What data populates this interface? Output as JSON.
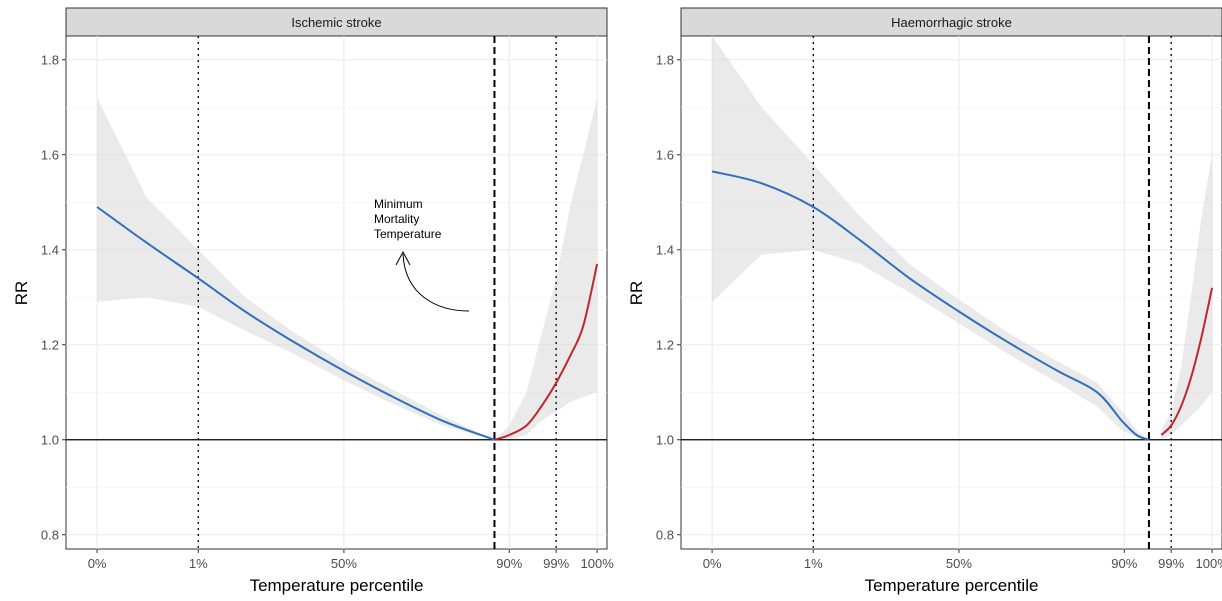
{
  "chart_data": [
    {
      "type": "line",
      "panel_title": "Ischemic stroke",
      "xlabel": "Temperature percentile",
      "ylabel": "RR",
      "ylim": [
        0.77,
        1.85
      ],
      "yticks": [
        0.8,
        1.0,
        1.2,
        1.4,
        1.6,
        1.8
      ],
      "ytick_labels": [
        "0.8",
        "1.0",
        "1.2",
        "1.4",
        "1.6",
        "1.8"
      ],
      "xlim": [
        -6.3,
        103.3
      ],
      "xticks": [
        0,
        20.5,
        50,
        83.5,
        93,
        101.3
      ],
      "xtick_labels": [
        "0%",
        "1%",
        "50%",
        "90%",
        "99%",
        "100%"
      ],
      "grid": true,
      "reference_line_y": 1.0,
      "percentile_lines_x": [
        20.5,
        93
      ],
      "mmt_x": 80.5,
      "annotation": "Minimum\nMortality\nTemperature",
      "series": [
        {
          "segment": "cold",
          "color": "#2f6fbf",
          "x": [
            0,
            10,
            20.5,
            30,
            40,
            50,
            60,
            70,
            80.5
          ],
          "y": [
            1.49,
            1.415,
            1.34,
            1.27,
            1.205,
            1.145,
            1.09,
            1.04,
            1.0
          ],
          "lower": [
            1.29,
            1.3,
            1.28,
            1.23,
            1.18,
            1.125,
            1.075,
            1.03,
            1.0
          ],
          "upper": [
            1.72,
            1.51,
            1.4,
            1.3,
            1.225,
            1.16,
            1.105,
            1.05,
            1.0
          ]
        },
        {
          "segment": "heat",
          "color": "#c0272d",
          "x": [
            80.5,
            83.5,
            87,
            90,
            93,
            96,
            98.5,
            101.3
          ],
          "y": [
            1.0,
            1.01,
            1.03,
            1.07,
            1.12,
            1.18,
            1.24,
            1.37
          ],
          "lower": [
            1.0,
            1.0,
            1.01,
            1.04,
            1.06,
            1.08,
            1.09,
            1.1
          ],
          "upper": [
            1.0,
            1.03,
            1.1,
            1.22,
            1.34,
            1.5,
            1.6,
            1.72
          ]
        }
      ]
    },
    {
      "type": "line",
      "panel_title": "Haemorrhagic stroke",
      "xlabel": "Temperature percentile",
      "ylabel": "RR",
      "ylim": [
        0.77,
        1.85
      ],
      "yticks": [
        0.8,
        1.0,
        1.2,
        1.4,
        1.6,
        1.8
      ],
      "ytick_labels": [
        "0.8",
        "1.0",
        "1.2",
        "1.4",
        "1.6",
        "1.8"
      ],
      "xlim": [
        -6.3,
        103.3
      ],
      "xticks": [
        0,
        20.5,
        50,
        83.5,
        93,
        101.3
      ],
      "xtick_labels": [
        "0%",
        "1%",
        "50%",
        "90%",
        "99%",
        "100%"
      ],
      "grid": true,
      "reference_line_y": 1.0,
      "percentile_lines_x": [
        20.5,
        93
      ],
      "mmt_x": 88.5,
      "series": [
        {
          "segment": "cold",
          "color": "#2f6fbf",
          "x": [
            0,
            10,
            20.5,
            30,
            40,
            50,
            60,
            70,
            78,
            83,
            86,
            88.5
          ],
          "y": [
            1.565,
            1.54,
            1.49,
            1.42,
            1.34,
            1.27,
            1.205,
            1.145,
            1.1,
            1.04,
            1.01,
            1.0
          ],
          "lower": [
            1.29,
            1.39,
            1.4,
            1.37,
            1.31,
            1.245,
            1.18,
            1.12,
            1.07,
            1.02,
            1.005,
            1.0
          ],
          "upper": [
            1.85,
            1.7,
            1.58,
            1.47,
            1.37,
            1.295,
            1.225,
            1.165,
            1.12,
            1.06,
            1.02,
            1.0
          ]
        },
        {
          "segment": "heat",
          "color": "#c0272d",
          "x": [
            91,
            93,
            95,
            97,
            99,
            101.3
          ],
          "y": [
            1.01,
            1.03,
            1.07,
            1.13,
            1.21,
            1.32
          ],
          "lower": [
            1.0,
            1.01,
            1.03,
            1.05,
            1.07,
            1.1
          ],
          "upper": [
            1.02,
            1.06,
            1.15,
            1.3,
            1.46,
            1.6
          ]
        }
      ]
    }
  ]
}
